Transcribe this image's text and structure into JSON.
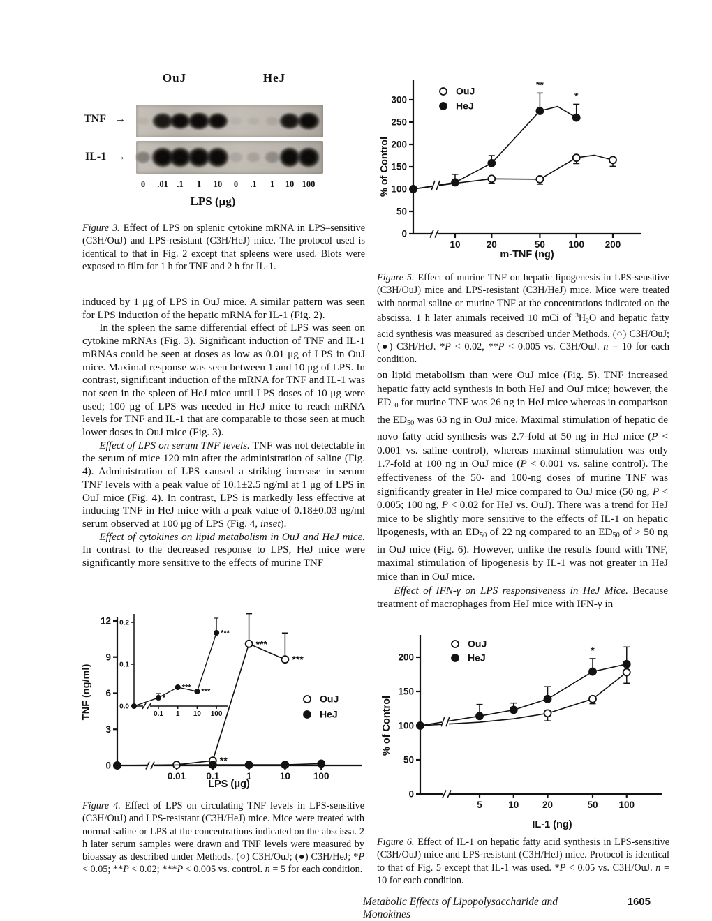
{
  "page": {
    "footer": {
      "running_title": "Metabolic Effects of Lipopolysaccharide and Monokines",
      "page_number": "1605"
    }
  },
  "figure3": {
    "group_labels": [
      "OuJ",
      "HeJ"
    ],
    "row_labels": [
      "TNF",
      "IL-1"
    ],
    "arrow": "→",
    "lane_labels": [
      "0",
      ".01",
      ".1",
      "1",
      "10",
      "0",
      ".1",
      "1",
      "10",
      "100"
    ],
    "x_axis_label": "LPS (μg)",
    "tnf_band_intensities": [
      0.05,
      0.8,
      0.9,
      1.0,
      0.88,
      0.05,
      0.05,
      0.08,
      0.82,
      0.95
    ],
    "il1_band_intensities": [
      0.3,
      0.95,
      0.93,
      0.95,
      1.0,
      0.1,
      0.12,
      0.22,
      0.92,
      1.0
    ]
  },
  "captions": {
    "fig3": [
      {
        "t": "Figure 3.",
        "i": true
      },
      {
        "t": " Effect of LPS on splenic cytokine mRNA in LPS–sensitive (C3H/OuJ) and LPS-resistant (C3H/HeJ) mice. The protocol used is identical to that in Fig. 2 except that spleens were used. Blots were exposed to film for 1 h for TNF and 2 h for IL-1."
      }
    ],
    "fig5": [
      {
        "t": "Figure 5.",
        "i": true
      },
      {
        "t": " Effect of murine TNF on hepatic lipogenesis in LPS-sensitive (C3H/OuJ) mice and LPS-resistant (C3H/HeJ) mice. Mice were treated with normal saline or murine TNF at the concentrations indicated on the abscissa. 1 h later animals received 10 mCi of "
      },
      {
        "t": "3",
        "sup": true
      },
      {
        "t": "H"
      },
      {
        "t": "2",
        "sub": true
      },
      {
        "t": "O and hepatic fatty acid synthesis was measured as described under Methods. (○) C3H/OuJ; (●) C3H/HeJ. *"
      },
      {
        "t": "P",
        "i": true
      },
      {
        "t": " < 0.02, **"
      },
      {
        "t": "P",
        "i": true
      },
      {
        "t": " < 0.005 vs. C3H/OuJ. "
      },
      {
        "t": "n",
        "i": true
      },
      {
        "t": " = 10 for each condition."
      }
    ],
    "fig4": [
      {
        "t": "Figure 4.",
        "i": true
      },
      {
        "t": " Effect of LPS on circulating TNF levels in LPS-sensitive (C3H/OuJ) and LPS-resistant (C3H/HeJ) mice. Mice were treated with normal saline or LPS at the concentrations indicated on the abscissa. 2 h later serum samples were drawn and TNF levels were measured by bioassay as described under Methods. (○) C3H/OuJ; (●) C3H/HeJ; *"
      },
      {
        "t": "P",
        "i": true
      },
      {
        "t": " < 0.05; **"
      },
      {
        "t": "P",
        "i": true
      },
      {
        "t": " < 0.02; ***"
      },
      {
        "t": "P",
        "i": true
      },
      {
        "t": " < 0.005 vs. control. "
      },
      {
        "t": "n",
        "i": true
      },
      {
        "t": " = 5 for each condition."
      }
    ],
    "fig6": [
      {
        "t": "Figure 6.",
        "i": true
      },
      {
        "t": " Effect of IL-1 on hepatic fatty acid synthesis in LPS-sensitive (C3H/OuJ) mice and LPS-resistant (C3H/HeJ) mice. Protocol is identical to that of Fig. 5 except that IL-1 was used. *"
      },
      {
        "t": "P",
        "i": true
      },
      {
        "t": " < 0.05 vs. C3H/OuJ. "
      },
      {
        "t": "n",
        "i": true
      },
      {
        "t": " = 10 for each condition."
      }
    ]
  },
  "body": {
    "left_paragraphs": [
      [
        {
          "t": "induced by 1 μg of LPS in OuJ mice. A similar pattern was seen for LPS induction of the hepatic mRNA for IL-1 (Fig. 2)."
        }
      ],
      [
        {
          "t": "In the spleen the same differential effect of LPS was seen on cytokine mRNAs (Fig. 3). Significant induction of TNF and IL-1 mRNAs could be seen at doses as low as 0.01 μg of LPS in OuJ mice. Maximal response was seen between 1 and 10 μg of LPS. In contrast, significant induction of the mRNA for TNF and IL-1 was not seen in the spleen of HeJ mice until LPS doses of 10 μg were used; 100 μg of LPS was needed in HeJ mice to reach mRNA levels for TNF and IL-1 that are comparable to those seen at much lower doses in OuJ mice (Fig. 3)."
        }
      ],
      [
        {
          "t": "Effect of LPS on serum TNF levels.",
          "i": true
        },
        {
          "t": " TNF was not detectable in the serum of mice 120 min after the administration of saline (Fig. 4). Administration of LPS caused a striking increase in serum TNF levels with a peak value of 10.1±2.5 ng/ml at 1 μg of LPS in OuJ mice (Fig. 4). In contrast, LPS is markedly less effective at inducing TNF in HeJ mice with a peak value of 0.18±0.03 ng/ml serum observed at 100 μg of LPS (Fig. 4, "
        },
        {
          "t": "inset",
          "i": true
        },
        {
          "t": ")."
        }
      ],
      [
        {
          "t": "Effect of cytokines on lipid metabolism in OuJ and HeJ mice.",
          "i": true
        },
        {
          "t": " In contrast to the decreased response to LPS, HeJ mice were significantly more sensitive to the effects of murine TNF"
        }
      ]
    ],
    "right_paragraphs": [
      [
        {
          "t": "on lipid metabolism than were OuJ mice (Fig. 5). TNF increased hepatic fatty acid synthesis in both HeJ and OuJ mice; however, the ED"
        },
        {
          "t": "50",
          "sub": true
        },
        {
          "t": " for murine TNF was 26 ng in HeJ mice whereas in comparison the ED"
        },
        {
          "t": "50",
          "sub": true
        },
        {
          "t": " was 63 ng in OuJ mice. Maximal stimulation of hepatic de novo fatty acid synthesis was 2.7-fold at 50 ng in HeJ mice ("
        },
        {
          "t": "P",
          "i": true
        },
        {
          "t": " < 0.001 vs. saline control), whereas maximal stimulation was only 1.7-fold at 100 ng in OuJ mice ("
        },
        {
          "t": "P",
          "i": true
        },
        {
          "t": " < 0.001 vs. saline control). The effectiveness of the 50- and 100-ng doses of murine TNF was significantly greater in HeJ mice compared to OuJ mice (50 ng, "
        },
        {
          "t": "P",
          "i": true
        },
        {
          "t": " < 0.005; 100 ng, "
        },
        {
          "t": "P",
          "i": true
        },
        {
          "t": " < 0.02 for HeJ vs. OuJ). There was a trend for HeJ mice to be slightly more sensitive to the effects of IL-1 on hepatic lipogenesis, with an ED"
        },
        {
          "t": "50",
          "sub": true
        },
        {
          "t": " of 22 ng compared to an ED"
        },
        {
          "t": "50",
          "sub": true
        },
        {
          "t": " of > 50 ng in OuJ mice (Fig. 6). However, unlike the results found with TNF, maximal stimulation of lipogenesis by IL-1 was not greater in HeJ mice than in OuJ mice."
        }
      ],
      [
        {
          "t": "Effect of IFN-γ on LPS responsiveness in HeJ Mice.",
          "i": true
        },
        {
          "t": " Because treatment of macrophages from HeJ mice with IFN-γ in"
        }
      ]
    ]
  },
  "chart_data": [
    {
      "id": "fig5",
      "type": "line",
      "xlabel": "m-TNF (ng)",
      "ylabel": "% of Control",
      "xscale": "log",
      "axis_break": true,
      "xticks": [
        10,
        20,
        50,
        100,
        200
      ],
      "yticks": [
        0,
        50,
        100,
        150,
        200,
        250,
        300
      ],
      "ylim": [
        0,
        340
      ],
      "legend": [
        "OuJ",
        "HeJ"
      ],
      "series": [
        {
          "name": "OuJ",
          "marker": "open",
          "points": [
            {
              "x": "control",
              "y": 100
            },
            {
              "x": 10,
              "y": 113,
              "line_only": true
            },
            {
              "x": 20,
              "y": 123,
              "err": 10,
              "err_dir": "down"
            },
            {
              "x": 50,
              "y": 122,
              "err": 11,
              "err_dir": "down"
            },
            {
              "x": 100,
              "y": 170,
              "err": 13,
              "err_dir": "down"
            },
            {
              "x": 140,
              "y": 176,
              "line_only": true
            },
            {
              "x": 200,
              "y": 165,
              "err": 14,
              "err_dir": "down"
            }
          ]
        },
        {
          "name": "HeJ",
          "marker": "filled",
          "points": [
            {
              "x": "control",
              "y": 100
            },
            {
              "x": 10,
              "y": 115,
              "err": 18,
              "err_dir": "up"
            },
            {
              "x": 20,
              "y": 158,
              "err": 17,
              "err_dir": "up"
            },
            {
              "x": 50,
              "y": 275,
              "err": 40,
              "err_dir": "up",
              "ann": "**",
              "ann_pos": "top"
            },
            {
              "x": 70,
              "y": 285,
              "line_only": true
            },
            {
              "x": 100,
              "y": 260,
              "err": 30,
              "err_dir": "up",
              "ann": "*",
              "ann_pos": "top"
            }
          ]
        }
      ]
    },
    {
      "id": "fig4",
      "type": "line",
      "xlabel": "LPS (μg)",
      "ylabel": "TNF (ng/ml)",
      "xscale": "log",
      "axis_break": true,
      "xticks": [
        0.01,
        0.1,
        1,
        10,
        100
      ],
      "yticks": [
        0,
        3,
        6,
        9,
        12
      ],
      "ylim": [
        0,
        13
      ],
      "legend": [
        "OuJ",
        "HeJ"
      ],
      "series": [
        {
          "name": "OuJ",
          "marker": "open",
          "points": [
            {
              "x": "control",
              "y": 0
            },
            {
              "x": 0.01,
              "y": 0.05
            },
            {
              "x": 0.1,
              "y": 0.4,
              "ann": "**",
              "ann_pos": "right"
            },
            {
              "x": 1,
              "y": 10.1,
              "err": 2.5,
              "err_dir": "up",
              "ann": "***",
              "ann_pos": "right"
            },
            {
              "x": 10,
              "y": 8.8,
              "err": 2.2,
              "err_dir": "up",
              "ann": "***",
              "ann_pos": "right"
            }
          ]
        },
        {
          "name": "HeJ",
          "marker": "filled",
          "points": [
            {
              "x": "control",
              "y": 0
            },
            {
              "x": 0.1,
              "y": 0.05
            },
            {
              "x": 1,
              "y": 0.05
            },
            {
              "x": 10,
              "y": 0.05
            },
            {
              "x": 100,
              "y": 0.15
            }
          ]
        }
      ],
      "inset": {
        "xticks": [
          0.1,
          1,
          10,
          100
        ],
        "yticks": [
          0,
          0.1,
          0.2
        ],
        "ytick_labels": [
          "0.0",
          "0.1",
          "0.2"
        ],
        "ylim": [
          0,
          0.22
        ],
        "series": [
          {
            "name": "HeJ",
            "marker": "filled",
            "points": [
              {
                "x": "control",
                "y": 0
              },
              {
                "x": 0.1,
                "y": 0.02,
                "err": 0.01,
                "err_dir": "up",
                "ann": "*",
                "ann_pos": "right"
              },
              {
                "x": 1,
                "y": 0.045,
                "ann": "***",
                "ann_pos": "right"
              },
              {
                "x": 10,
                "y": 0.035,
                "ann": "***",
                "ann_pos": "right"
              },
              {
                "x": 100,
                "y": 0.175,
                "err": 0.035,
                "err_dir": "up",
                "ann": "***",
                "ann_pos": "right"
              }
            ]
          }
        ]
      }
    },
    {
      "id": "fig6",
      "type": "line",
      "xlabel": "IL-1 (ng)",
      "ylabel": "% of Control",
      "xscale": "log",
      "axis_break": true,
      "xticks": [
        5,
        10,
        20,
        50,
        100
      ],
      "yticks": [
        0,
        50,
        100,
        150,
        200
      ],
      "ylim": [
        0,
        235
      ],
      "legend": [
        "OuJ",
        "HeJ"
      ],
      "series": [
        {
          "name": "OuJ",
          "marker": "open",
          "points": [
            {
              "x": "control",
              "y": 100
            },
            {
              "x": 5,
              "y": 105,
              "line_only": true
            },
            {
              "x": 10,
              "y": 110,
              "line_only": true
            },
            {
              "x": 20,
              "y": 118,
              "err": 11,
              "err_dir": "down"
            },
            {
              "x": 50,
              "y": 139,
              "err": 7,
              "err_dir": "down"
            },
            {
              "x": 100,
              "y": 178,
              "err": 16,
              "err_dir": "down"
            }
          ]
        },
        {
          "name": "HeJ",
          "marker": "filled",
          "points": [
            {
              "x": "control",
              "y": 100
            },
            {
              "x": 5,
              "y": 114,
              "err": 17,
              "err_dir": "up"
            },
            {
              "x": 10,
              "y": 123,
              "err": 10,
              "err_dir": "up"
            },
            {
              "x": 20,
              "y": 139,
              "err": 18,
              "err_dir": "up"
            },
            {
              "x": 50,
              "y": 179,
              "err": 19,
              "err_dir": "up",
              "ann": "*",
              "ann_pos": "top"
            },
            {
              "x": 100,
              "y": 190,
              "err": 25,
              "err_dir": "up"
            }
          ]
        }
      ]
    }
  ]
}
